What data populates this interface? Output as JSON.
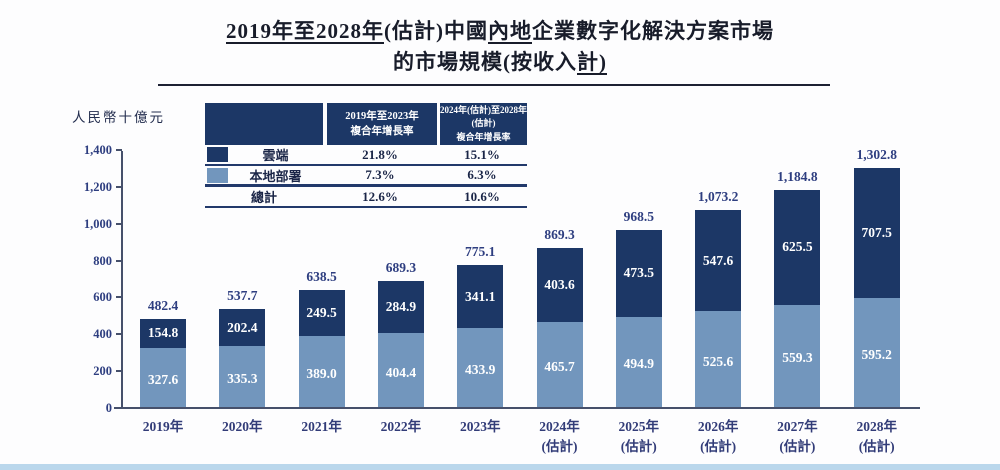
{
  "title": {
    "line1_segments": [
      {
        "t": "2019年至2028年",
        "u": true
      },
      {
        "t": "(估計)中國",
        "u": false
      },
      {
        "t": "內地",
        "u": true
      },
      {
        "t": "企業數字化解決方案市場",
        "u": false
      }
    ],
    "line2_segments": [
      {
        "t": "的市場規模(按收入",
        "u": false
      },
      {
        "t": "計)",
        "u": true
      }
    ]
  },
  "y_axis": {
    "unit_label": "人民幣十億元"
  },
  "legend_table": {
    "col_headers": [
      "2019年至2023年\n複合年增長率",
      "2024年(估計)至2028年(估計)\n複合年增長率"
    ],
    "rows": [
      {
        "swatch": "#1c3766",
        "label": "雲端",
        "cagr1": "21.8%",
        "cagr2": "15.1%"
      },
      {
        "swatch": "#7296bd",
        "label": "本地部署",
        "cagr1": "7.3%",
        "cagr2": "6.3%"
      },
      {
        "swatch": null,
        "label": "總計",
        "cagr1": "12.6%",
        "cagr2": "10.6%"
      }
    ]
  },
  "chart_data": {
    "type": "bar",
    "stacked": true,
    "title": "2019年至2028年(估計)中國內地企業數字化解決方案市場的市場規模(按收入計)",
    "ylabel": "人民幣十億元",
    "ylim": [
      0,
      1400
    ],
    "ytick_step": 200,
    "yticks": [
      "0",
      "200",
      "400",
      "600",
      "800",
      "1,000",
      "1,200",
      "1,400"
    ],
    "grid": false,
    "legend_position": "top-left-table",
    "categories": [
      "2019年",
      "2020年",
      "2021年",
      "2022年",
      "2023年",
      "2024年\n(估計)",
      "2025年\n(估計)",
      "2026年\n(估計)",
      "2027年\n(估計)",
      "2028年\n(估計)"
    ],
    "series": [
      {
        "name": "雲端",
        "color": "#1c3766",
        "values": [
          "154.8",
          "202.4",
          "249.5",
          "284.9",
          "341.1",
          "403.6",
          "473.5",
          "547.6",
          "625.5",
          "707.5"
        ]
      },
      {
        "name": "本地部署",
        "color": "#7296bd",
        "values": [
          "327.6",
          "335.3",
          "389.0",
          "404.4",
          "433.9",
          "465.7",
          "494.9",
          "525.6",
          "559.3",
          "595.2"
        ]
      }
    ],
    "totals": [
      "482.4",
      "537.7",
      "638.5",
      "689.3",
      "775.1",
      "869.3",
      "968.5",
      "1,073.2",
      "1,184.8",
      "1,302.8"
    ]
  },
  "colors": {
    "cloud_bar": "#1c3766",
    "onprem_bar": "#7296bd",
    "value_text": "#2e3e80",
    "axis_line": "#46506b",
    "table_header_bg": "#1c3766",
    "bottom_strip": "#bad7ec"
  }
}
